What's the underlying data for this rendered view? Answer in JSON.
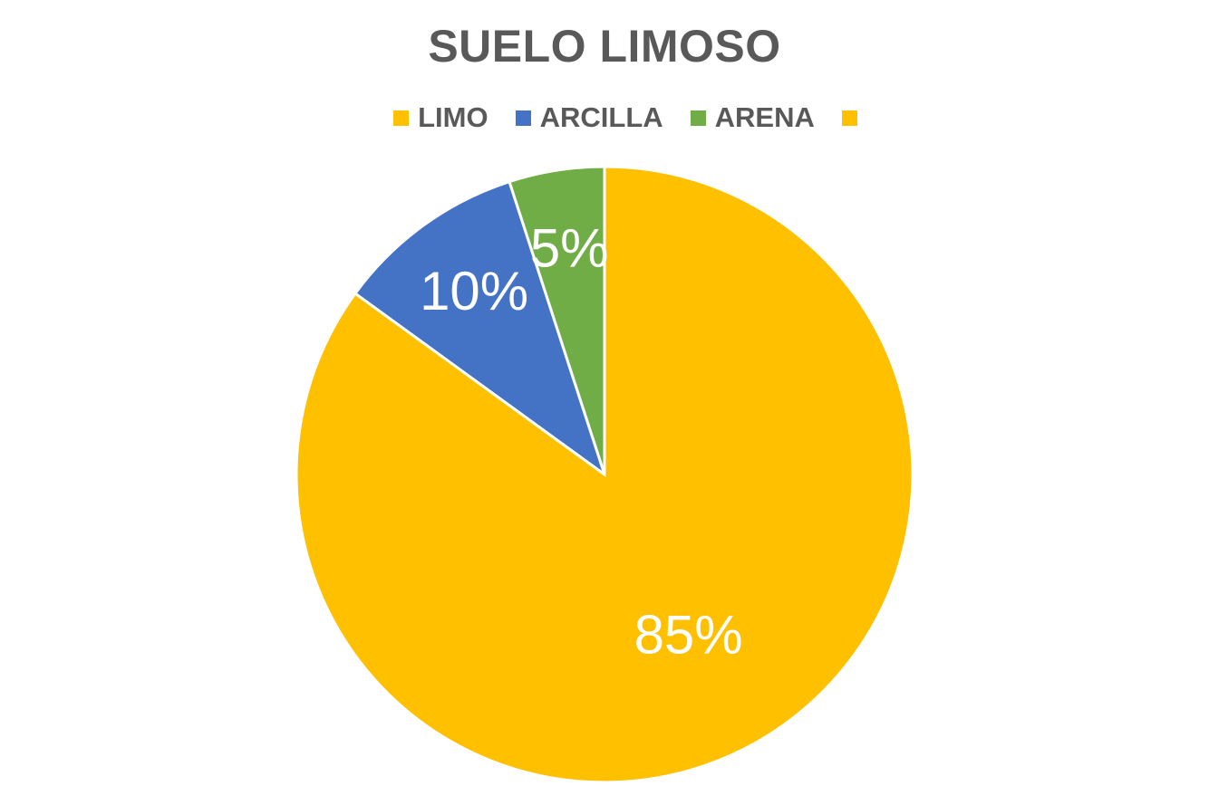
{
  "chart_data": {
    "type": "pie",
    "title": "SUELO LIMOSO",
    "legend_position": "top",
    "start_angle_deg": 0,
    "direction": "counterclockwise",
    "slices": [
      {
        "name": "LIMO",
        "value": 85,
        "label": "85%",
        "color": "#FFC000"
      },
      {
        "name": "ARCILLA",
        "value": 10,
        "label": "10%",
        "color": "#4472C4"
      },
      {
        "name": "ARENA",
        "value": 5,
        "label": "5%",
        "color": "#70AD47"
      }
    ],
    "legend": [
      {
        "name": "LIMO",
        "color": "#FFC000"
      },
      {
        "name": "ARCILLA",
        "color": "#4472C4"
      },
      {
        "name": "ARENA",
        "color": "#70AD47"
      },
      {
        "name": "",
        "color": "#FFC000"
      }
    ]
  }
}
